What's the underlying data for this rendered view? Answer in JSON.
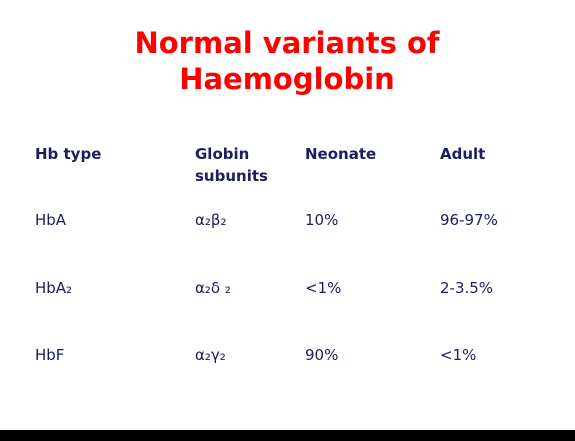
{
  "title": "Normal variants of Haemoglobin",
  "table": {
    "header": [
      "Hb type",
      "Globin subunits",
      "Neonate",
      "Adult"
    ],
    "rows": [
      [
        "HbA",
        "α₂β₂",
        "10%",
        "96-97%"
      ],
      [
        "HbA₂",
        "α₂δ ₂",
        "<1%",
        "2-3.5%"
      ],
      [
        "HbF",
        "α₂γ₂",
        "90%",
        "<1%"
      ]
    ]
  }
}
